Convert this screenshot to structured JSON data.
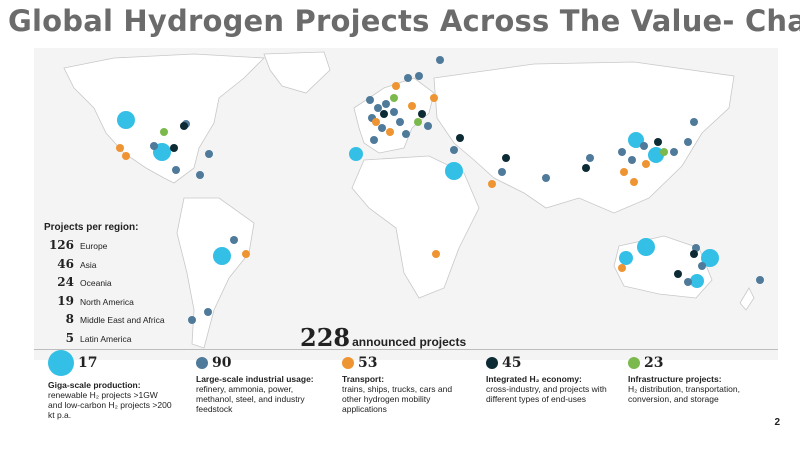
{
  "title": "Global Hydrogen Projects Across The Value- Chain",
  "region_box": {
    "heading": "Projects per region:",
    "regions": [
      {
        "count": "126",
        "name": "Europe"
      },
      {
        "count": "46",
        "name": "Asia"
      },
      {
        "count": "24",
        "name": "Oceania"
      },
      {
        "count": "19",
        "name": "North America"
      },
      {
        "count": "8",
        "name": "Middle East and Africa"
      },
      {
        "count": "5",
        "name": "Latin America"
      }
    ]
  },
  "total": {
    "number": "228",
    "label": "announced projects"
  },
  "categories": [
    {
      "count": "17",
      "color": "#33bfe6",
      "title": "Giga-scale production:",
      "desc": "renewable H₂ projects >1GW and low-carbon H₂ projects >200 kt p.a."
    },
    {
      "count": "90",
      "color": "#4f7a9a",
      "title": "Large-scale industrial usage:",
      "desc": "refinery, ammonia, power, methanol, steel, and industry feedstock"
    },
    {
      "count": "53",
      "color": "#ef9432",
      "title": "Transport:",
      "desc": "trains, ships, trucks, cars and other hydrogen mobility applications"
    },
    {
      "count": "45",
      "color": "#0d2b35",
      "title": "Integrated H₂ economy:",
      "desc": "cross-industry, and projects with different types of end-uses"
    },
    {
      "count": "23",
      "color": "#7cb94c",
      "title": "Infrastructure projects:",
      "desc": "H₂ distribution, transportation, conversion, and storage"
    }
  ],
  "page_number": "2"
}
